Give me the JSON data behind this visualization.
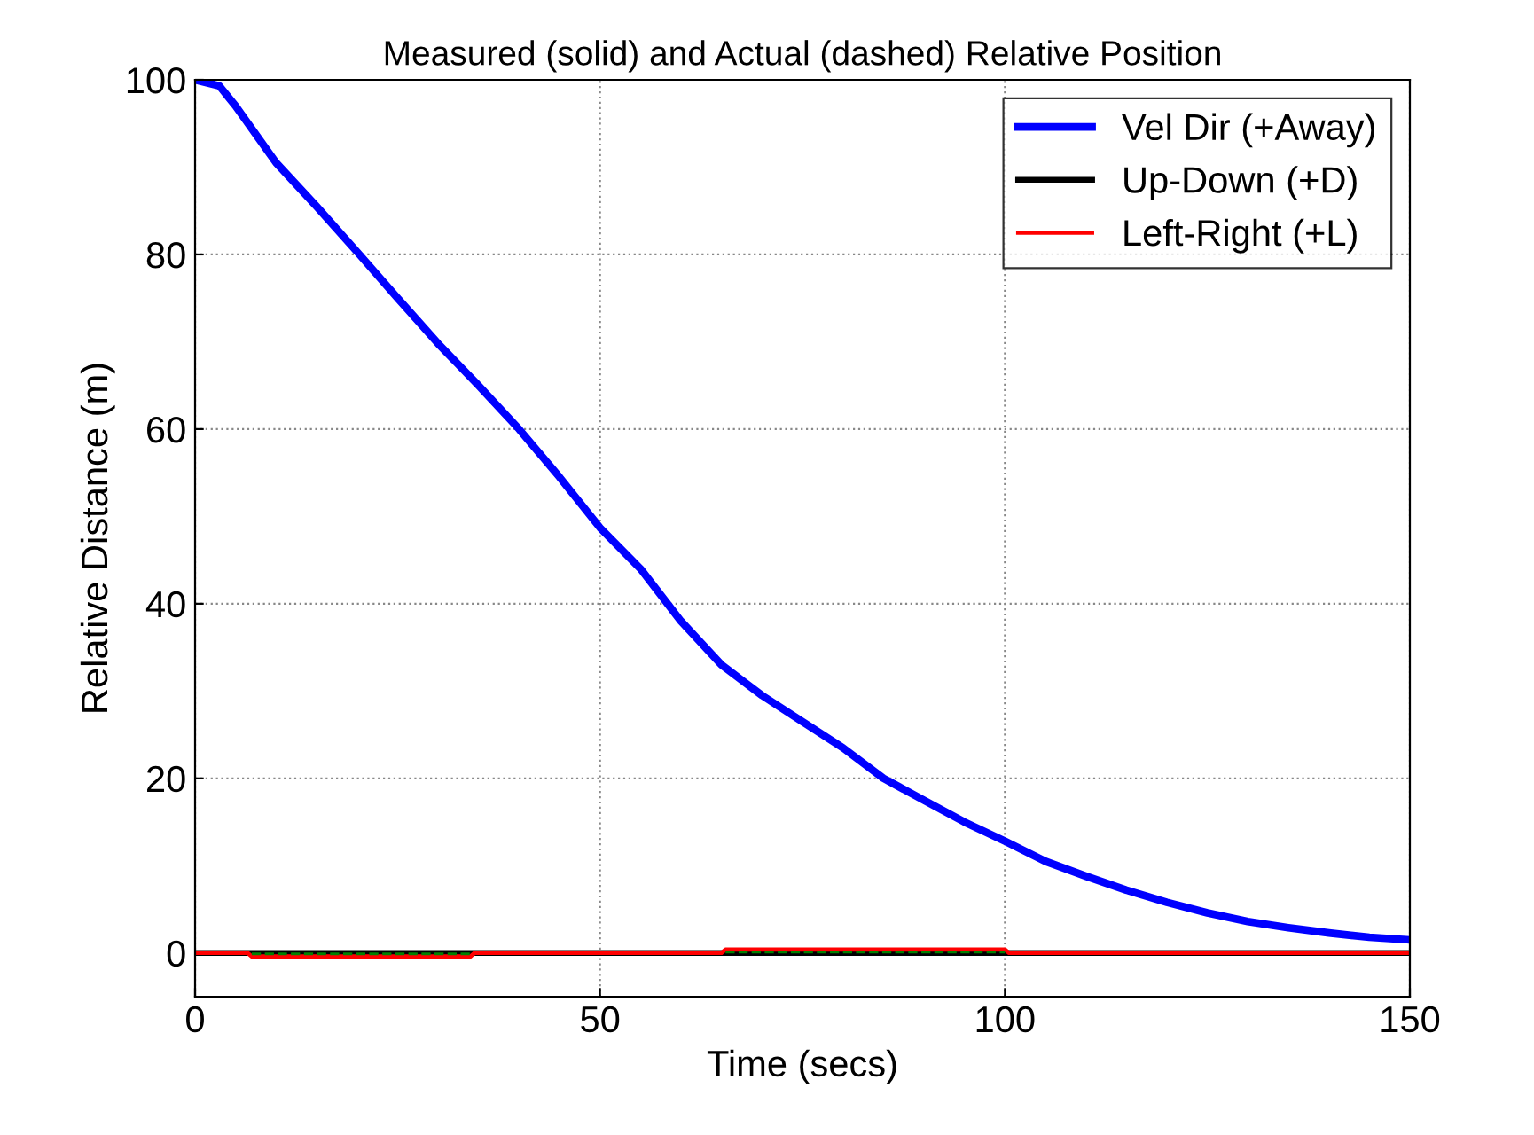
{
  "chart_data": {
    "type": "line",
    "title": "Measured (solid) and Actual (dashed) Relative Position",
    "xlabel": "Time (secs)",
    "ylabel": "Relative Distance (m)",
    "xlim": [
      0,
      150
    ],
    "ylim": [
      -5,
      100
    ],
    "xticks": [
      0,
      50,
      100,
      150
    ],
    "yticks": [
      0,
      20,
      40,
      60,
      80,
      100
    ],
    "grid": true,
    "legend": "top right",
    "series": [
      {
        "name": "Vel Dir (+Away)",
        "color": "#0000ff",
        "x": [
          0,
          3,
          5,
          10,
          15,
          20,
          25,
          30,
          35,
          40,
          45,
          50,
          55,
          60,
          65,
          70,
          75,
          80,
          85,
          90,
          95,
          100,
          105,
          110,
          115,
          120,
          125,
          130,
          135,
          140,
          145,
          150
        ],
        "values": [
          100,
          99.3,
          97,
          90.5,
          85.5,
          80.3,
          75,
          69.8,
          65,
          60,
          54.5,
          48.7,
          44,
          38,
          33,
          29.5,
          26.5,
          23.5,
          20,
          17.5,
          15,
          12.8,
          10.5,
          8.8,
          7.2,
          5.8,
          4.6,
          3.6,
          2.9,
          2.3,
          1.8,
          1.5
        ]
      },
      {
        "name": "Up-Down (+D)",
        "color": "#000000",
        "x": [
          0,
          150
        ],
        "values": [
          0,
          0
        ]
      },
      {
        "name": "Left-Right (+L)",
        "color": "#ff0000",
        "x": [
          0,
          6.5,
          7,
          34,
          34.5,
          65,
          65.5,
          100,
          100.5,
          150
        ],
        "values": [
          0,
          0,
          -0.4,
          -0.4,
          0,
          0,
          0.4,
          0.4,
          0,
          0
        ]
      },
      {
        "color": "#008000",
        "line_style": "dashed",
        "x": [
          7,
          34,
          34.5,
          65,
          65.5,
          100
        ],
        "values": [
          -0.1,
          -0.1,
          null,
          null,
          0.1,
          0.1
        ]
      }
    ]
  }
}
